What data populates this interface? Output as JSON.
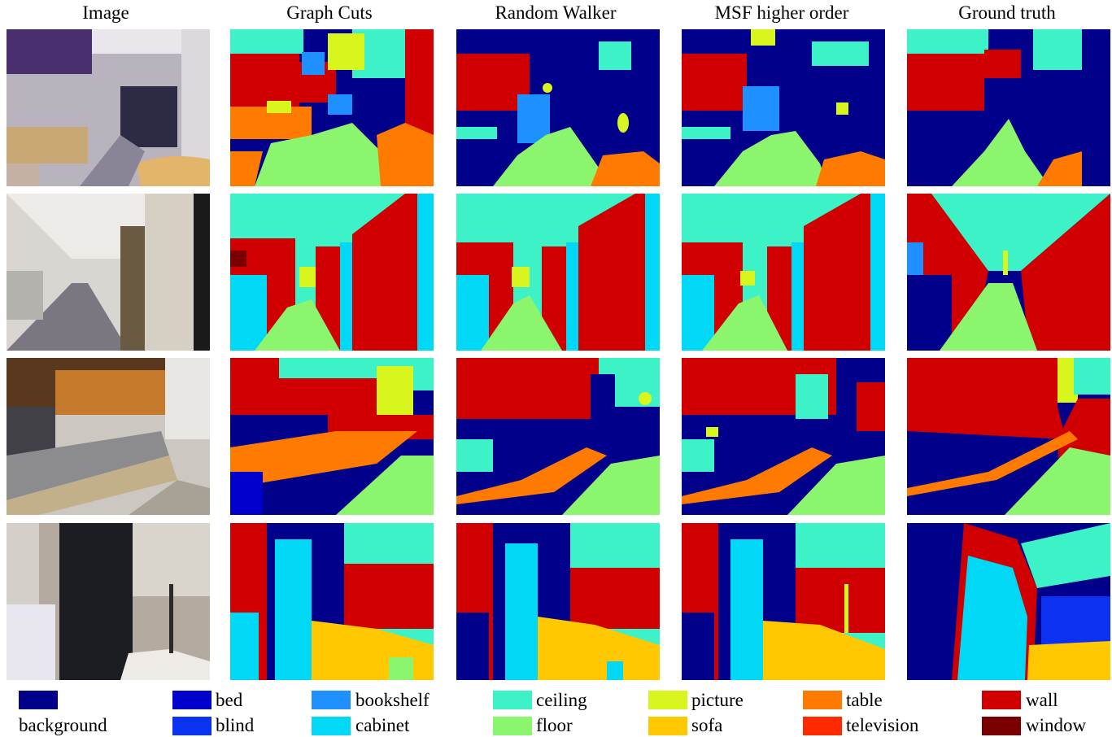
{
  "columns": [
    "Image",
    "Graph Cuts",
    "Random Walker",
    "MSF higher order",
    "Ground truth"
  ],
  "colors": {
    "background": "#00008B",
    "bed": "#0000CD",
    "blind": "#0A32F0",
    "bookshelf": "#1E90FF",
    "cabinet": "#00D8F5",
    "ceiling": "#3EF2C8",
    "floor": "#8CF56E",
    "picture": "#D8F51E",
    "sofa": "#FFC800",
    "table": "#FF7A00",
    "television": "#FF2A00",
    "wall": "#D00000",
    "window": "#7A0000"
  },
  "legend": [
    {
      "key": "background",
      "label": "background"
    },
    {
      "key": "bed",
      "label": "bed"
    },
    {
      "key": "blind",
      "label": "blind"
    },
    {
      "key": "bookshelf",
      "label": "bookshelf"
    },
    {
      "key": "cabinet",
      "label": "cabinet"
    },
    {
      "key": "ceiling",
      "label": "ceiling"
    },
    {
      "key": "floor",
      "label": "floor"
    },
    {
      "key": "picture",
      "label": "picture"
    },
    {
      "key": "sofa",
      "label": "sofa"
    },
    {
      "key": "table",
      "label": "table"
    },
    {
      "key": "television",
      "label": "television"
    },
    {
      "key": "wall",
      "label": "wall"
    },
    {
      "key": "window",
      "label": "window"
    }
  ]
}
